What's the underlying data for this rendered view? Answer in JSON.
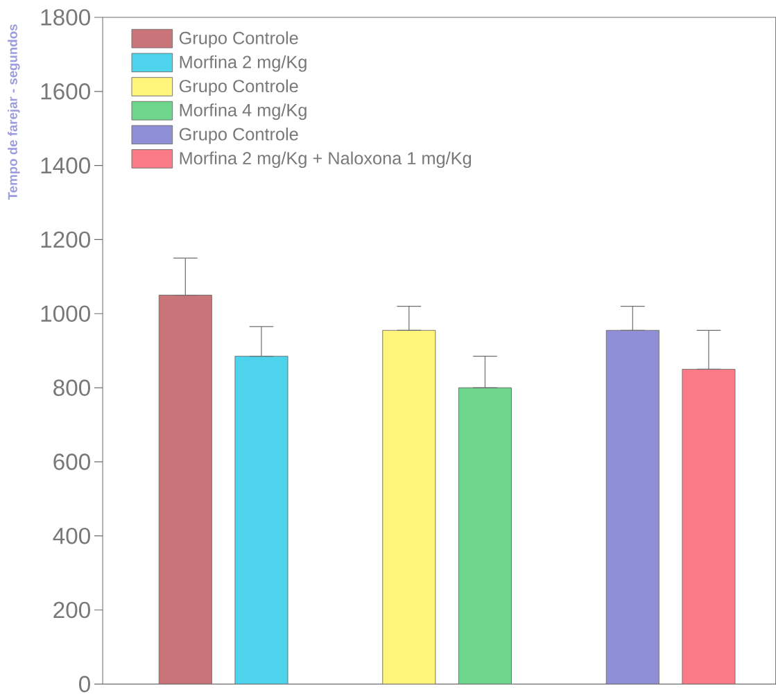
{
  "chart_data": {
    "type": "bar",
    "ylabel": "Tempo de farejar - segundos",
    "categories": [
      null,
      null,
      null
    ],
    "ylim": [
      0,
      1800
    ],
    "yticks": [
      0,
      200,
      400,
      600,
      800,
      1000,
      1200,
      1400,
      1600,
      1800
    ],
    "annotations": [
      "Grupo Controle",
      "Morfina 2 mg/Kg",
      "Grupo Controle",
      "Morfina 4 mg/Kg",
      "Grupo Controle",
      "Morfina 2 mg/Kg + Naloxona 1 mg/Kg"
    ],
    "series": [
      {
        "colors": [
          "#c87478",
          "#fff57a",
          "#8f8fd8"
        ],
        "values": [
          1050,
          955,
          955
        ],
        "errors": [
          [
            1050,
            1150
          ],
          [
            955,
            1020
          ],
          [
            955,
            1020
          ]
        ]
      },
      {
        "colors": [
          "#4dd4ec",
          "#6ed68c",
          "#fa7a88"
        ],
        "values": [
          885,
          800,
          850
        ],
        "errors": [
          [
            885,
            965
          ],
          [
            800,
            885
          ],
          [
            850,
            955
          ]
        ]
      }
    ]
  }
}
